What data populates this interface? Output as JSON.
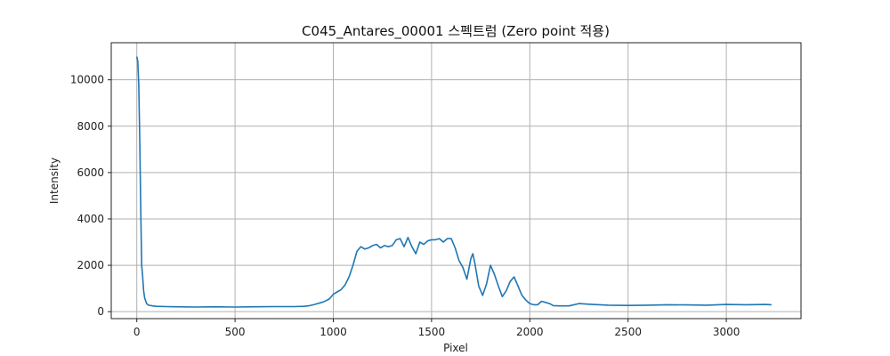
{
  "chart_data": {
    "type": "line",
    "title": "C045_Antares_00001 스펙트럼 (Zero point 적용)",
    "xlabel": "Pixel",
    "ylabel": "Intensity",
    "xlim": [
      -130,
      3380
    ],
    "ylim": [
      -300,
      11600
    ],
    "xticks": [
      0,
      500,
      1000,
      1500,
      2000,
      2500,
      3000
    ],
    "yticks": [
      0,
      2000,
      4000,
      6000,
      8000,
      10000
    ],
    "grid": true,
    "color": "#1f77b4",
    "series": [
      {
        "x": [
          0,
          5,
          10,
          15,
          20,
          25,
          30,
          35,
          40,
          50,
          60,
          80,
          100,
          150,
          200,
          300,
          400,
          500,
          600,
          700,
          800,
          850,
          880,
          900,
          950,
          980,
          1000,
          1020,
          1040,
          1060,
          1080,
          1100,
          1120,
          1140,
          1160,
          1180,
          1200,
          1220,
          1240,
          1260,
          1280,
          1300,
          1320,
          1340,
          1360,
          1380,
          1400,
          1420,
          1440,
          1460,
          1480,
          1500,
          1520,
          1540,
          1560,
          1580,
          1600,
          1620,
          1640,
          1660,
          1680,
          1700,
          1710,
          1720,
          1740,
          1760,
          1780,
          1800,
          1820,
          1840,
          1860,
          1880,
          1900,
          1920,
          1940,
          1960,
          1980,
          2000,
          2020,
          2040,
          2060,
          2080,
          2100,
          2120,
          2150,
          2200,
          2250,
          2300,
          2400,
          2500,
          2600,
          2700,
          2800,
          2900,
          3000,
          3100,
          3200,
          3230
        ],
        "y": [
          11000,
          10800,
          9800,
          7500,
          4500,
          2000,
          1500,
          900,
          600,
          350,
          280,
          250,
          230,
          220,
          210,
          200,
          210,
          200,
          210,
          220,
          220,
          230,
          260,
          300,
          420,
          550,
          750,
          850,
          950,
          1150,
          1500,
          2000,
          2600,
          2800,
          2700,
          2750,
          2850,
          2900,
          2750,
          2850,
          2800,
          2850,
          3100,
          3150,
          2800,
          3200,
          2800,
          2500,
          3000,
          2900,
          3050,
          3100,
          3100,
          3150,
          3000,
          3150,
          3150,
          2750,
          2200,
          1900,
          1400,
          2300,
          2500,
          2100,
          1100,
          700,
          1200,
          2000,
          1600,
          1100,
          650,
          900,
          1300,
          1500,
          1100,
          700,
          500,
          350,
          300,
          300,
          450,
          400,
          350,
          260,
          250,
          250,
          350,
          320,
          280,
          270,
          280,
          300,
          290,
          280,
          310,
          300,
          310,
          300
        ]
      }
    ]
  }
}
